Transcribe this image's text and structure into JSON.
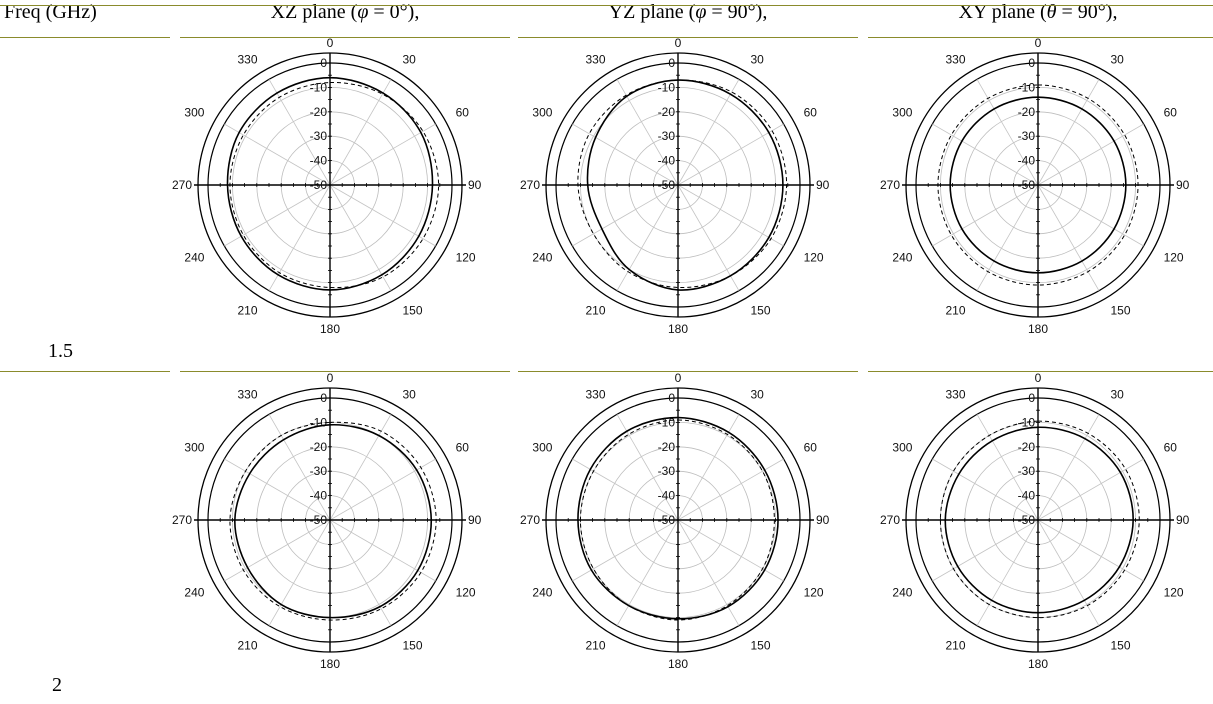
{
  "table": {
    "header": {
      "freq": "Freq (GHz)",
      "xz": {
        "prefix": "XZ plane (",
        "sym": "φ",
        "rest": " = 0°),"
      },
      "yz": {
        "prefix": "YZ plane (",
        "sym": "φ",
        "rest": " = 90°),"
      },
      "xy": {
        "prefix": "XY plane (",
        "sym": "θ",
        "rest": " = 90°),"
      }
    },
    "rows": [
      {
        "freq": "1.5"
      },
      {
        "freq": "2"
      }
    ]
  },
  "chart_data": [
    {
      "id": "r1-xz",
      "type": "polar",
      "row": 0,
      "col": 0,
      "angle_labels": [
        "0",
        "30",
        "60",
        "90",
        "120",
        "150",
        "180",
        "210",
        "240",
        "270",
        "300",
        "330"
      ],
      "radial_labels": [
        "0",
        "-10",
        "-20",
        "-30",
        "-40",
        "-50"
      ],
      "rlim": [
        -50,
        0
      ],
      "series": [
        {
          "style": "solid",
          "r": [
            -6,
            -6.5,
            -7,
            -8,
            -8,
            -7.5,
            -7,
            -7.5,
            -8,
            -8,
            -7,
            -6.5
          ]
        },
        {
          "style": "dashed",
          "r": [
            -8,
            -7,
            -6,
            -5.5,
            -6,
            -6.5,
            -8,
            -8.5,
            -9,
            -9,
            -9,
            -8.5
          ]
        }
      ]
    },
    {
      "id": "r1-yz",
      "type": "polar",
      "row": 0,
      "col": 1,
      "angle_labels": [
        "0",
        "30",
        "60",
        "90",
        "120",
        "150",
        "180",
        "210",
        "240",
        "270",
        "300",
        "330"
      ],
      "radial_labels": [
        "0",
        "-10",
        "-20",
        "-30",
        "-40",
        "-50"
      ],
      "rlim": [
        -50,
        0
      ],
      "series": [
        {
          "style": "solid",
          "r": [
            -7,
            -7,
            -7,
            -7,
            -7,
            -7,
            -7,
            -10,
            -14,
            -13,
            -11,
            -8
          ]
        },
        {
          "style": "dashed",
          "r": [
            -7,
            -6,
            -5.5,
            -5.5,
            -6,
            -7,
            -8,
            -9,
            -10,
            -9,
            -8,
            -7.5
          ]
        }
      ]
    },
    {
      "id": "r1-xy",
      "type": "polar",
      "row": 0,
      "col": 2,
      "angle_labels": [
        "0",
        "30",
        "60",
        "90",
        "120",
        "150",
        "180",
        "210",
        "240",
        "270",
        "300",
        "330"
      ],
      "radial_labels": [
        "0",
        "-10",
        "-20",
        "-30",
        "-40",
        "-50"
      ],
      "rlim": [
        -50,
        0
      ],
      "series": [
        {
          "style": "solid",
          "r": [
            -14,
            -14,
            -14,
            -14,
            -14,
            -14,
            -14,
            -14,
            -14,
            -14,
            -14,
            -14
          ]
        },
        {
          "style": "dashed",
          "r": [
            -9,
            -9,
            -9,
            -9,
            -9,
            -9,
            -9,
            -9,
            -9,
            -9,
            -9,
            -9
          ]
        }
      ]
    },
    {
      "id": "r2-xz",
      "type": "polar",
      "row": 1,
      "col": 0,
      "angle_labels": [
        "0",
        "30",
        "60",
        "90",
        "120",
        "150",
        "180",
        "210",
        "240",
        "270",
        "300",
        "330"
      ],
      "radial_labels": [
        "0",
        "-10",
        "-20",
        "-30",
        "-40",
        "-50"
      ],
      "rlim": [
        -50,
        0
      ],
      "series": [
        {
          "style": "solid",
          "r": [
            -11,
            -10,
            -9,
            -8.5,
            -8.5,
            -9,
            -10,
            -10,
            -11,
            -11,
            -12,
            -12
          ]
        },
        {
          "style": "dashed",
          "r": [
            -10,
            -8,
            -7,
            -6.5,
            -7,
            -8,
            -9,
            -9,
            -9,
            -9,
            -10,
            -10
          ]
        }
      ]
    },
    {
      "id": "r2-yz",
      "type": "polar",
      "row": 1,
      "col": 1,
      "angle_labels": [
        "0",
        "30",
        "60",
        "90",
        "120",
        "150",
        "180",
        "210",
        "240",
        "270",
        "300",
        "330"
      ],
      "radial_labels": [
        "0",
        "-10",
        "-20",
        "-30",
        "-40",
        "-50"
      ],
      "rlim": [
        -50,
        0
      ],
      "series": [
        {
          "style": "solid",
          "r": [
            -8,
            -8.5,
            -9,
            -9,
            -9,
            -9,
            -9.5,
            -9.5,
            -9,
            -9,
            -8.5,
            -8
          ]
        },
        {
          "style": "dashed",
          "r": [
            -9,
            -9.5,
            -10,
            -10.5,
            -10,
            -9.5,
            -9,
            -9.5,
            -10,
            -10,
            -10,
            -9.5
          ]
        }
      ]
    },
    {
      "id": "r2-xy",
      "type": "polar",
      "row": 1,
      "col": 2,
      "angle_labels": [
        "0",
        "30",
        "60",
        "90",
        "120",
        "150",
        "180",
        "210",
        "240",
        "270",
        "300",
        "330"
      ],
      "radial_labels": [
        "0",
        "-10",
        "-20",
        "-30",
        "-40",
        "-50"
      ],
      "rlim": [
        -50,
        0
      ],
      "series": [
        {
          "style": "solid",
          "r": [
            -12,
            -11.5,
            -11,
            -11,
            -11.5,
            -12,
            -12,
            -12,
            -12,
            -12,
            -12.5,
            -12.5
          ]
        },
        {
          "style": "dashed",
          "r": [
            -9.5,
            -9,
            -8.5,
            -8.5,
            -9,
            -9.5,
            -10,
            -10,
            -10,
            -10,
            -10,
            -10
          ]
        }
      ]
    }
  ]
}
